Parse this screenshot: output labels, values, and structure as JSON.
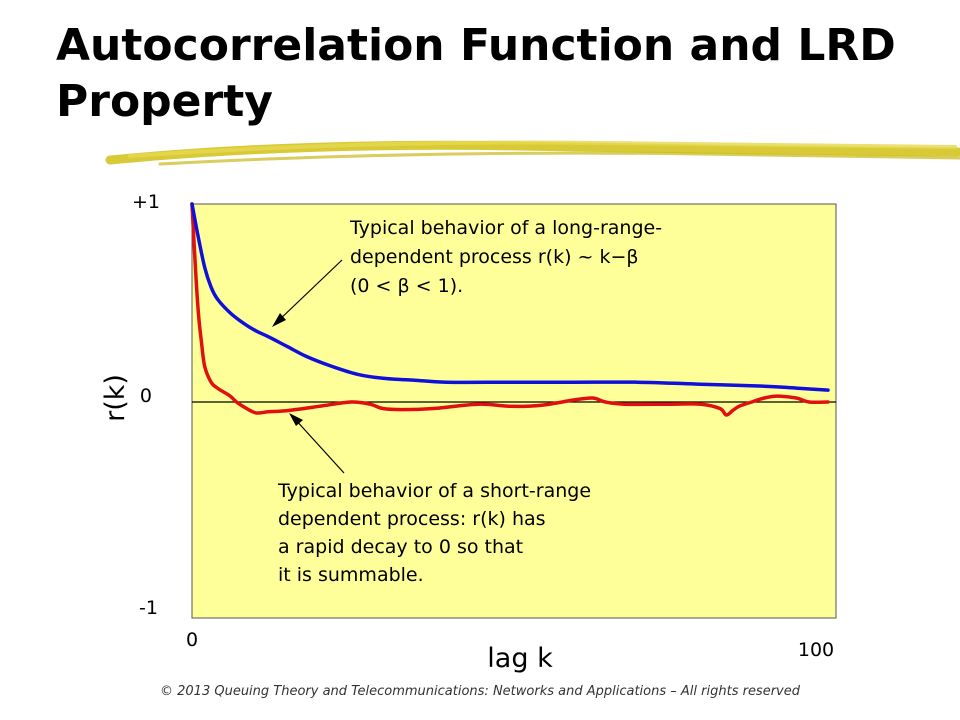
{
  "slide": {
    "title": "Autocorrelation Function and LRD Property",
    "footer": "© 2013 Queuing Theory and Telecommunications: Networks and Applications – All rights reserved"
  },
  "colors": {
    "plot_background": "#FFFF99",
    "long_range": "#1010D8",
    "short_range": "#E01010",
    "title_underline": "#D4C420"
  },
  "chart_data": {
    "type": "line",
    "title": "",
    "xlabel": "lag k",
    "ylabel": "r(k)",
    "xlim": [
      0,
      100
    ],
    "ylim": [
      -1,
      1
    ],
    "x_tick_labels": [
      "0",
      "100"
    ],
    "y_tick_labels": [
      "+1",
      "0",
      "-1"
    ],
    "grid": false,
    "series": [
      {
        "key": "long_range",
        "x": [
          0,
          1,
          2,
          3,
          4,
          6,
          8,
          10,
          12,
          15,
          18,
          22,
          26,
          30,
          35,
          40,
          50,
          60,
          70,
          80,
          90,
          95,
          100
        ],
        "y": [
          1.0,
          0.83,
          0.68,
          0.58,
          0.52,
          0.45,
          0.4,
          0.36,
          0.33,
          0.28,
          0.23,
          0.18,
          0.14,
          0.12,
          0.11,
          0.1,
          0.1,
          0.1,
          0.1,
          0.09,
          0.08,
          0.07,
          0.06
        ]
      },
      {
        "key": "short_range",
        "x": [
          0,
          0.5,
          1,
          1.5,
          2,
          3,
          4,
          5,
          6,
          7,
          8,
          10,
          12,
          15,
          20,
          25,
          28,
          30,
          33,
          38,
          45,
          50,
          55,
          60,
          63,
          65,
          68,
          75,
          80,
          83,
          84,
          85,
          86,
          88,
          90,
          92,
          95,
          97,
          100
        ],
        "y": [
          1.0,
          0.7,
          0.45,
          0.3,
          0.18,
          0.1,
          0.07,
          0.05,
          0.03,
          0.0,
          -0.02,
          -0.05,
          -0.045,
          -0.04,
          -0.02,
          0.0,
          -0.01,
          -0.03,
          -0.035,
          -0.03,
          -0.01,
          -0.02,
          -0.015,
          0.01,
          0.02,
          0.0,
          -0.01,
          -0.01,
          -0.01,
          -0.03,
          -0.06,
          -0.04,
          -0.02,
          0.0,
          0.02,
          0.03,
          0.02,
          0.0,
          0.0
        ]
      }
    ],
    "annotations": [
      {
        "key": "long_range",
        "lines": [
          "Typical behavior of a long-range-",
          "dependent process r(k) ~ k−β",
          "(0 < β < 1)."
        ]
      },
      {
        "key": "short_range",
        "lines": [
          "Typical behavior of a short-range",
          "dependent process: r(k) has",
          "a rapid decay to 0 so that",
          "it is summable."
        ]
      }
    ]
  }
}
